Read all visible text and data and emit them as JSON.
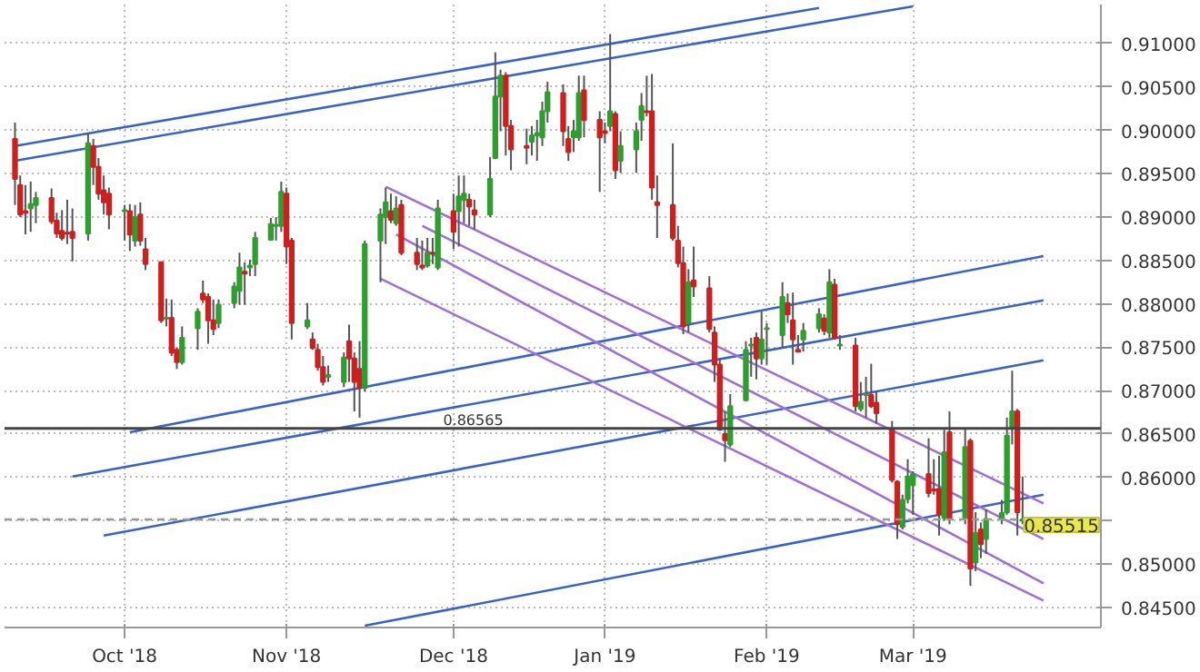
{
  "chart_data": {
    "type": "candlestick",
    "x": [
      "2018-09-10",
      "2018-09-11",
      "2018-09-12",
      "2018-09-13",
      "2018-09-14",
      "2018-09-17",
      "2018-09-18",
      "2018-09-19",
      "2018-09-20",
      "2018-09-21",
      "2018-09-24",
      "2018-09-25",
      "2018-09-26",
      "2018-09-27",
      "2018-09-28",
      "2018-10-01",
      "2018-10-02",
      "2018-10-03",
      "2018-10-04",
      "2018-10-05",
      "2018-10-08",
      "2018-10-09",
      "2018-10-10",
      "2018-10-11",
      "2018-10-12",
      "2018-10-15",
      "2018-10-16",
      "2018-10-17",
      "2018-10-18",
      "2018-10-19",
      "2018-10-22",
      "2018-10-23",
      "2018-10-24",
      "2018-10-25",
      "2018-10-26",
      "2018-10-29",
      "2018-10-30",
      "2018-10-31",
      "2018-11-01",
      "2018-11-02",
      "2018-11-05",
      "2018-11-06",
      "2018-11-07",
      "2018-11-08",
      "2018-11-09",
      "2018-11-12",
      "2018-11-13",
      "2018-11-14",
      "2018-11-15",
      "2018-11-16",
      "2018-11-19",
      "2018-11-20",
      "2018-11-21",
      "2018-11-22",
      "2018-11-23",
      "2018-11-26",
      "2018-11-27",
      "2018-11-28",
      "2018-11-29",
      "2018-11-30",
      "2018-12-03",
      "2018-12-04",
      "2018-12-05",
      "2018-12-06",
      "2018-12-07",
      "2018-12-10",
      "2018-12-11",
      "2018-12-12",
      "2018-12-13",
      "2018-12-14",
      "2018-12-17",
      "2018-12-18",
      "2018-12-19",
      "2018-12-20",
      "2018-12-21",
      "2018-12-24",
      "2018-12-25",
      "2018-12-26",
      "2018-12-27",
      "2018-12-28",
      "2018-12-31",
      "2019-01-01",
      "2019-01-02",
      "2019-01-03",
      "2019-01-04",
      "2019-01-07",
      "2019-01-08",
      "2019-01-09",
      "2019-01-10",
      "2019-01-11",
      "2019-01-14",
      "2019-01-15",
      "2019-01-16",
      "2019-01-17",
      "2019-01-18",
      "2019-01-21",
      "2019-01-22",
      "2019-01-23",
      "2019-01-24",
      "2019-01-25",
      "2019-01-28",
      "2019-01-29",
      "2019-01-30",
      "2019-01-31",
      "2019-02-01",
      "2019-02-04",
      "2019-02-05",
      "2019-02-06",
      "2019-02-07",
      "2019-02-08",
      "2019-02-11",
      "2019-02-12",
      "2019-02-13",
      "2019-02-14",
      "2019-02-15",
      "2019-02-18",
      "2019-02-19",
      "2019-02-20",
      "2019-02-21",
      "2019-02-22",
      "2019-02-25",
      "2019-02-26",
      "2019-02-27",
      "2019-02-28",
      "2019-03-01",
      "2019-03-04",
      "2019-03-05",
      "2019-03-06",
      "2019-03-07",
      "2019-03-08",
      "2019-03-11",
      "2019-03-12",
      "2019-03-13",
      "2019-03-14",
      "2019-03-15",
      "2019-03-18",
      "2019-03-19",
      "2019-03-20",
      "2019-03-21",
      "2019-03-22"
    ],
    "ohlc": [
      [
        0.899,
        0.9009,
        0.8914,
        0.8944
      ],
      [
        0.8937,
        0.8948,
        0.89,
        0.8903
      ],
      [
        0.8907,
        0.8937,
        0.888,
        0.8905
      ],
      [
        0.891,
        0.8941,
        0.8883,
        0.8915
      ],
      [
        0.8914,
        0.8929,
        0.8893,
        0.8922
      ],
      [
        0.8922,
        0.8933,
        0.8892,
        0.8895
      ],
      [
        0.8896,
        0.8905,
        0.8876,
        0.8881
      ],
      [
        0.8884,
        0.8908,
        0.8873,
        0.8876
      ],
      [
        0.8882,
        0.892,
        0.8869,
        0.8881
      ],
      [
        0.8883,
        0.891,
        0.8849,
        0.8876
      ],
      [
        0.8881,
        0.8997,
        0.8873,
        0.8985
      ],
      [
        0.8982,
        0.899,
        0.8937,
        0.8958
      ],
      [
        0.8958,
        0.8968,
        0.892,
        0.8927
      ],
      [
        0.8931,
        0.8948,
        0.8903,
        0.8917
      ],
      [
        0.8927,
        0.8934,
        0.8886,
        0.8903
      ],
      [
        0.8907,
        0.8914,
        0.8873,
        0.8908
      ],
      [
        0.8907,
        0.8915,
        0.8861,
        0.888
      ],
      [
        0.8873,
        0.8914,
        0.8866,
        0.89
      ],
      [
        0.8903,
        0.8917,
        0.8867,
        0.8873
      ],
      [
        0.8863,
        0.8876,
        0.8839,
        0.8846
      ],
      [
        0.8848,
        0.8849,
        0.8778,
        0.8781
      ],
      [
        0.8783,
        0.8806,
        0.8774,
        0.8784
      ],
      [
        0.8784,
        0.8805,
        0.874,
        0.8744
      ],
      [
        0.8747,
        0.875,
        0.8725,
        0.8733
      ],
      [
        0.8733,
        0.8774,
        0.873,
        0.8761
      ],
      [
        0.8772,
        0.8795,
        0.8747,
        0.8791
      ],
      [
        0.8812,
        0.8827,
        0.8801,
        0.8805
      ],
      [
        0.8808,
        0.8812,
        0.8754,
        0.8781
      ],
      [
        0.8781,
        0.8805,
        0.8764,
        0.8771
      ],
      [
        0.8778,
        0.8805,
        0.8772,
        0.8799
      ],
      [
        0.8801,
        0.8825,
        0.8795,
        0.882
      ],
      [
        0.8815,
        0.8859,
        0.8799,
        0.8842
      ],
      [
        0.8837,
        0.8848,
        0.8799,
        0.8835
      ],
      [
        0.8842,
        0.8851,
        0.8832,
        0.8844
      ],
      [
        0.8846,
        0.8883,
        0.8832,
        0.8876
      ],
      [
        0.8874,
        0.8899,
        0.8873,
        0.8892
      ],
      [
        0.889,
        0.89,
        0.8873,
        0.8891
      ],
      [
        0.889,
        0.8941,
        0.8883,
        0.8929
      ],
      [
        0.8927,
        0.8934,
        0.8846,
        0.8866
      ],
      [
        0.8873,
        0.8876,
        0.8759,
        0.8778
      ],
      [
        0.8774,
        0.8801,
        0.8771,
        0.8781
      ],
      [
        0.8759,
        0.8767,
        0.8747,
        0.8749
      ],
      [
        0.8747,
        0.8754,
        0.8723,
        0.8727
      ],
      [
        0.8727,
        0.874,
        0.8706,
        0.871
      ],
      [
        0.8716,
        0.8729,
        0.871,
        0.8718
      ],
      [
        0.871,
        0.8744,
        0.8704,
        0.8738
      ],
      [
        0.8757,
        0.8776,
        0.871,
        0.8737
      ],
      [
        0.8737,
        0.8744,
        0.8676,
        0.871
      ],
      [
        0.8725,
        0.8757,
        0.8669,
        0.8703
      ],
      [
        0.8703,
        0.8873,
        0.8699,
        0.8869
      ],
      [
        0.8873,
        0.891,
        0.8825,
        0.8903
      ],
      [
        0.89,
        0.8934,
        0.8869,
        0.8917
      ],
      [
        0.8907,
        0.8927,
        0.8893,
        0.8897
      ],
      [
        0.8893,
        0.8924,
        0.889,
        0.891
      ],
      [
        0.8914,
        0.892,
        0.8856,
        0.8859
      ],
      [
        0.8859,
        0.8876,
        0.8839,
        0.8846
      ],
      [
        0.8844,
        0.8873,
        0.8839,
        0.8842
      ],
      [
        0.8844,
        0.8876,
        0.8842,
        0.8859
      ],
      [
        0.8859,
        0.8876,
        0.8846,
        0.8858
      ],
      [
        0.8842,
        0.892,
        0.8839,
        0.891
      ],
      [
        0.8907,
        0.8927,
        0.8863,
        0.8883
      ],
      [
        0.8907,
        0.8948,
        0.8866,
        0.8924
      ],
      [
        0.892,
        0.8948,
        0.8893,
        0.8927
      ],
      [
        0.892,
        0.8927,
        0.889,
        0.8912
      ],
      [
        0.8908,
        0.892,
        0.8886,
        0.8903
      ],
      [
        0.8903,
        0.8969,
        0.89,
        0.8944
      ],
      [
        0.8968,
        0.909,
        0.8967,
        0.9039
      ],
      [
        0.9039,
        0.907,
        0.8999,
        0.9063
      ],
      [
        0.9063,
        0.9067,
        0.8971,
        0.9005
      ],
      [
        0.9005,
        0.9012,
        0.8954,
        0.8978
      ],
      [
        0.8982,
        0.9002,
        0.8961,
        0.898
      ],
      [
        0.8987,
        0.9005,
        0.8971,
        0.8994
      ],
      [
        0.8994,
        0.9012,
        0.8965,
        0.8997
      ],
      [
        0.8992,
        0.9033,
        0.8982,
        0.9022
      ],
      [
        0.9022,
        0.9056,
        0.9009,
        0.9044
      ],
      [
        0.9043,
        0.9053,
        0.8982,
        0.8999
      ],
      [
        0.899,
        0.9005,
        0.8965,
        0.8975
      ],
      [
        0.8992,
        0.9012,
        0.8975,
        0.8999
      ],
      [
        0.8992,
        0.9063,
        0.8988,
        0.9043
      ],
      [
        0.9046,
        0.9063,
        0.8992,
        0.9012
      ],
      [
        0.9012,
        0.9022,
        0.8929,
        0.8992
      ],
      [
        0.8999,
        0.9009,
        0.8985,
        0.8997
      ],
      [
        0.9005,
        0.9111,
        0.8999,
        0.9022
      ],
      [
        0.9019,
        0.9022,
        0.8944,
        0.8954
      ],
      [
        0.8965,
        0.8999,
        0.8951,
        0.8982
      ],
      [
        0.8978,
        0.9009,
        0.8951,
        0.8999
      ],
      [
        0.9012,
        0.9043,
        0.8988,
        0.9028
      ],
      [
        0.9022,
        0.9063,
        0.9016,
        0.9021
      ],
      [
        0.9022,
        0.9065,
        0.892,
        0.8934
      ],
      [
        0.8917,
        0.8948,
        0.8876,
        0.8914
      ],
      [
        0.8914,
        0.8985,
        0.8873,
        0.8876
      ],
      [
        0.8873,
        0.889,
        0.8842,
        0.8847
      ],
      [
        0.8847,
        0.8866,
        0.8765,
        0.8774
      ],
      [
        0.8778,
        0.884,
        0.8767,
        0.8825
      ],
      [
        0.8827,
        0.8866,
        0.8808,
        0.882
      ],
      [
        0.8818,
        0.8832,
        0.8767,
        0.8771
      ],
      [
        0.8767,
        0.8774,
        0.871,
        0.873
      ],
      [
        0.873,
        0.8737,
        0.8654,
        0.8655
      ],
      [
        0.865,
        0.8676,
        0.8618,
        0.8643
      ],
      [
        0.8638,
        0.8696,
        0.8635,
        0.8682
      ],
      [
        0.8689,
        0.8757,
        0.8688,
        0.8747
      ],
      [
        0.8752,
        0.8761,
        0.8716,
        0.8753
      ],
      [
        0.8761,
        0.8767,
        0.8713,
        0.8737
      ],
      [
        0.8737,
        0.8791,
        0.873,
        0.8759
      ],
      [
        0.8771,
        0.8778,
        0.873,
        0.8772
      ],
      [
        0.8764,
        0.8825,
        0.875,
        0.8808
      ],
      [
        0.8801,
        0.8812,
        0.8778,
        0.8788
      ],
      [
        0.8781,
        0.8813,
        0.873,
        0.8759
      ],
      [
        0.8747,
        0.8764,
        0.8744,
        0.8745
      ],
      [
        0.8759,
        0.8778,
        0.8745,
        0.8769
      ],
      [
        0.8772,
        0.8795,
        0.8767,
        0.8788
      ],
      [
        0.8783,
        0.8788,
        0.8764,
        0.8769
      ],
      [
        0.8767,
        0.884,
        0.8761,
        0.8825
      ],
      [
        0.8822,
        0.8829,
        0.8759,
        0.8761
      ],
      [
        0.8752,
        0.8764,
        0.8747,
        0.8753
      ],
      [
        0.8752,
        0.8761,
        0.8676,
        0.8682
      ],
      [
        0.8679,
        0.871,
        0.8676,
        0.8687
      ],
      [
        0.8695,
        0.8716,
        0.8669,
        0.8696
      ],
      [
        0.8695,
        0.8731,
        0.868,
        0.8682
      ],
      [
        0.8686,
        0.8699,
        0.8662,
        0.8674
      ],
      [
        0.8655,
        0.8665,
        0.8594,
        0.8597
      ],
      [
        0.8595,
        0.8597,
        0.8529,
        0.8546
      ],
      [
        0.8543,
        0.858,
        0.854,
        0.8574
      ],
      [
        0.8575,
        0.8621,
        0.857,
        0.8601
      ],
      [
        0.8591,
        0.8607,
        0.8557,
        0.8604
      ],
      [
        0.8604,
        0.8645,
        0.8577,
        0.8582
      ],
      [
        0.8586,
        0.8621,
        0.858,
        0.8585
      ],
      [
        0.8587,
        0.8625,
        0.8533,
        0.8557
      ],
      [
        0.8553,
        0.8655,
        0.855,
        0.8629
      ],
      [
        0.8652,
        0.8676,
        0.8546,
        0.8553
      ],
      [
        0.8553,
        0.8657,
        0.8546,
        0.8635
      ],
      [
        0.8642,
        0.8645,
        0.8475,
        0.8495
      ],
      [
        0.8502,
        0.856,
        0.8492,
        0.8536
      ],
      [
        0.854,
        0.8548,
        0.8507,
        0.8523
      ],
      [
        0.8529,
        0.8563,
        0.8512,
        0.8552
      ],
      [
        0.8553,
        0.8574,
        0.8546,
        0.8559
      ],
      [
        0.856,
        0.8669,
        0.8557,
        0.8648
      ],
      [
        0.8657,
        0.8723,
        0.8638,
        0.8676
      ],
      [
        0.8676,
        0.8679,
        0.8533,
        0.856
      ],
      [
        0.855,
        0.8601,
        0.8546,
        0.85515
      ]
    ],
    "colors": [
      "#cc2020",
      "#cc2020",
      "#cc2020",
      "#2e9e2e",
      "#2e9e2e",
      "#cc2020",
      "#cc2020",
      "#cc2020",
      "#cc2020",
      "#cc2020",
      "#2e9e2e",
      "#cc2020",
      "#cc2020",
      "#cc2020",
      "#cc2020",
      "#2e9e2e",
      "#cc2020",
      "#2e9e2e",
      "#cc2020",
      "#cc2020",
      "#cc2020",
      "#2e9e2e",
      "#cc2020",
      "#cc2020",
      "#2e9e2e",
      "#2e9e2e",
      "#cc2020",
      "#cc2020",
      "#cc2020",
      "#2e9e2e",
      "#2e9e2e",
      "#2e9e2e",
      "#cc2020",
      "#2e9e2e",
      "#2e9e2e",
      "#2e9e2e",
      "#2e9e2e",
      "#2e9e2e",
      "#cc2020",
      "#cc2020",
      "#2e9e2e",
      "#cc2020",
      "#cc2020",
      "#cc2020",
      "#2e9e2e",
      "#2e9e2e",
      "#cc2020",
      "#cc2020",
      "#cc2020",
      "#2e9e2e",
      "#2e9e2e",
      "#2e9e2e",
      "#cc2020",
      "#2e9e2e",
      "#cc2020",
      "#cc2020",
      "#cc2020",
      "#2e9e2e",
      "#cc2020",
      "#2e9e2e",
      "#cc2020",
      "#2e9e2e",
      "#2e9e2e",
      "#cc2020",
      "#cc2020",
      "#2e9e2e",
      "#2e9e2e",
      "#2e9e2e",
      "#cc2020",
      "#cc2020",
      "#cc2020",
      "#2e9e2e",
      "#2e9e2e",
      "#2e9e2e",
      "#2e9e2e",
      "#cc2020",
      "#cc2020",
      "#2e9e2e",
      "#2e9e2e",
      "#cc2020",
      "#cc2020",
      "#cc2020",
      "#2e9e2e",
      "#cc2020",
      "#2e9e2e",
      "#2e9e2e",
      "#2e9e2e",
      "#cc2020",
      "#cc2020",
      "#cc2020",
      "#cc2020",
      "#cc2020",
      "#cc2020",
      "#2e9e2e",
      "#cc2020",
      "#cc2020",
      "#cc2020",
      "#cc2020",
      "#cc2020",
      "#2e9e2e",
      "#2e9e2e",
      "#2e9e2e",
      "#cc2020",
      "#2e9e2e",
      "#2e9e2e",
      "#2e9e2e",
      "#cc2020",
      "#cc2020",
      "#cc2020",
      "#2e9e2e",
      "#2e9e2e",
      "#cc2020",
      "#2e9e2e",
      "#cc2020",
      "#2e9e2e",
      "#cc2020",
      "#2e9e2e",
      "#2e9e2e",
      "#cc2020",
      "#cc2020",
      "#cc2020",
      "#cc2020",
      "#2e9e2e",
      "#2e9e2e",
      "#2e9e2e",
      "#cc2020",
      "#cc2020",
      "#cc2020",
      "#2e9e2e",
      "#cc2020",
      "#2e9e2e",
      "#cc2020",
      "#2e9e2e",
      "#cc2020",
      "#2e9e2e",
      "#2e9e2e",
      "#2e9e2e",
      "#2e9e2e",
      "#cc2020",
      "#2e9e2e"
    ],
    "series": [
      {
        "type": "line",
        "color": "#3a62c8",
        "x": [
          "2018-09-10",
          "2019-02-11"
        ],
        "values": [
          0.8982,
          0.9141
        ]
      },
      {
        "type": "line",
        "color": "#3a62c8",
        "x": [
          "2018-09-10",
          "2019-03-01"
        ],
        "values": [
          0.8965,
          0.9143
        ]
      },
      {
        "type": "line",
        "color": "#3a62c8",
        "x": [
          "2018-10-02",
          "2019-03-26"
        ],
        "values": [
          0.8652,
          0.8855
        ]
      },
      {
        "type": "line",
        "color": "#3a62c8",
        "x": [
          "2018-09-21",
          "2019-03-26"
        ],
        "values": [
          0.8601,
          0.8804
        ]
      },
      {
        "type": "line",
        "color": "#3a62c8",
        "x": [
          "2018-09-27",
          "2019-03-26"
        ],
        "values": [
          0.8533,
          0.8735
        ]
      },
      {
        "type": "line",
        "color": "#3a62c8",
        "x": [
          "2018-11-16",
          "2019-03-26"
        ],
        "values": [
          0.8429,
          0.858
        ]
      },
      {
        "type": "line",
        "color": "#a070d8",
        "x": [
          "2018-11-20",
          "2019-03-26"
        ],
        "values": [
          0.8935,
          0.857
        ]
      },
      {
        "type": "line",
        "color": "#a070d8",
        "x": [
          "2018-11-27",
          "2019-03-26"
        ],
        "values": [
          0.889,
          0.8529
        ]
      },
      {
        "type": "line",
        "color": "#a070d8",
        "x": [
          "2018-11-22",
          "2019-03-26"
        ],
        "values": [
          0.888,
          0.8478
        ]
      },
      {
        "type": "line",
        "color": "#a070d8",
        "x": [
          "2018-11-19",
          "2019-03-26"
        ],
        "values": [
          0.8829,
          0.8458
        ]
      }
    ],
    "xlim": [
      "2018-09-08",
      "2019-04-06"
    ],
    "ylim": [
      0.8427,
      0.9145
    ],
    "xticks": [
      {
        "value": "2018-10-01",
        "label": "Oct '18"
      },
      {
        "value": "2018-11-01",
        "label": "Nov '18"
      },
      {
        "value": "2018-12-03",
        "label": "Dec '18"
      },
      {
        "value": "2019-01-01",
        "label": "Jan '19"
      },
      {
        "value": "2019-02-01",
        "label": "Feb '19"
      },
      {
        "value": "2019-03-01",
        "label": "Mar '19"
      }
    ],
    "yticks": [
      {
        "value": 0.845,
        "label": "0.84500"
      },
      {
        "value": 0.85,
        "label": "0.85000"
      },
      {
        "value": 0.855,
        "label": null
      },
      {
        "value": 0.86,
        "label": "0.86000"
      },
      {
        "value": 0.865,
        "label": "0.86500"
      },
      {
        "value": 0.87,
        "label": "0.87000"
      },
      {
        "value": 0.875,
        "label": "0.87500"
      },
      {
        "value": 0.88,
        "label": "0.88000"
      },
      {
        "value": 0.885,
        "label": "0.88500"
      },
      {
        "value": 0.89,
        "label": "0.89000"
      },
      {
        "value": 0.895,
        "label": "0.89500"
      },
      {
        "value": 0.9,
        "label": "0.90000"
      },
      {
        "value": 0.905,
        "label": "0.90500"
      },
      {
        "value": 0.91,
        "label": "0.91000"
      }
    ],
    "grid": true,
    "ref_lines": [
      {
        "axis": "y",
        "value": 0.86565,
        "label": "0.86565",
        "color": "#444444",
        "line_style": "solid"
      },
      {
        "axis": "y",
        "value": 0.85515,
        "label": "0.85515",
        "color": "#999999",
        "line_style": "dashed"
      }
    ]
  }
}
